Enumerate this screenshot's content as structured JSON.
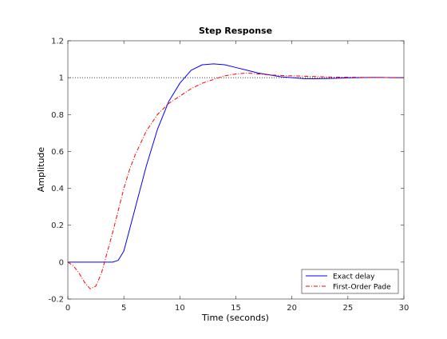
{
  "chart_data": {
    "type": "line",
    "title": "Step Response",
    "xlabel": "Time (seconds)",
    "ylabel": "Amplitude",
    "xlim": [
      0,
      30
    ],
    "ylim": [
      -0.2,
      1.2
    ],
    "xticks": [
      0,
      5,
      10,
      15,
      20,
      25,
      30
    ],
    "yticks": [
      -0.2,
      0,
      0.2,
      0.4,
      0.6,
      0.8,
      1,
      1.2
    ],
    "xtick_labels": [
      "0",
      "5",
      "10",
      "15",
      "20",
      "25",
      "30"
    ],
    "ytick_labels": [
      "-0.2",
      "0",
      "0.2",
      "0.4",
      "0.6",
      "0.8",
      "1",
      "1.2"
    ],
    "grid": false,
    "reference_line": {
      "y": 1,
      "style": "dotted",
      "color": "#000000"
    },
    "legend_position": "bottom-right",
    "series": [
      {
        "name": "Exact delay",
        "color": "#0000ff",
        "style": "solid",
        "x": [
          0,
          4,
          4.5,
          5,
          6,
          7,
          8,
          9,
          10,
          11,
          12,
          13,
          14,
          15,
          16,
          17,
          18,
          19,
          20,
          21,
          22,
          23,
          24,
          25,
          26,
          27,
          28,
          29,
          30
        ],
        "y": [
          0,
          0,
          0.01,
          0.06,
          0.29,
          0.52,
          0.72,
          0.87,
          0.97,
          1.04,
          1.07,
          1.075,
          1.07,
          1.055,
          1.04,
          1.025,
          1.015,
          1.005,
          1.0,
          0.995,
          0.994,
          0.995,
          0.997,
          0.999,
          1.0,
          1.001,
          1.001,
          1.0,
          1.0
        ]
      },
      {
        "name": "First-Order Pade",
        "color": "#ff0000",
        "style": "dashdot",
        "x": [
          0,
          0.5,
          1,
          1.5,
          2,
          2.5,
          3,
          3.5,
          4,
          4.5,
          5,
          5.5,
          6,
          7,
          8,
          9,
          10,
          11,
          12,
          13,
          14,
          15,
          16,
          17,
          18,
          19,
          20,
          21,
          22,
          23,
          24,
          25,
          26,
          27,
          28,
          29,
          30
        ],
        "y": [
          0,
          -0.02,
          -0.06,
          -0.11,
          -0.145,
          -0.13,
          -0.06,
          0.05,
          0.16,
          0.28,
          0.4,
          0.5,
          0.58,
          0.71,
          0.8,
          0.86,
          0.9,
          0.94,
          0.97,
          0.99,
          1.01,
          1.02,
          1.025,
          1.02,
          1.015,
          1.012,
          1.01,
          1.008,
          1.006,
          1.004,
          1.003,
          1.002,
          1.002,
          1.001,
          1.001,
          1.0,
          1.0
        ]
      }
    ]
  }
}
